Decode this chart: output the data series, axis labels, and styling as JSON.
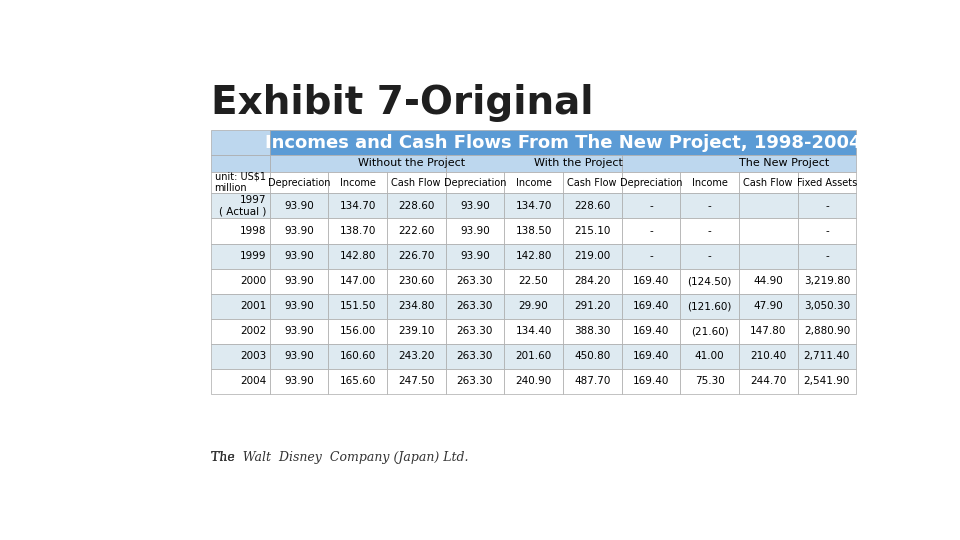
{
  "title": "Exhibit 7-Original",
  "table_header": "Incomes and Cash Flows From The New Project, 1998-2004",
  "section_headers": [
    "Without the Project",
    "With the Project",
    "The New Project"
  ],
  "section_spans": [
    3,
    3,
    4
  ],
  "col_headers": [
    "Depreciation",
    "Income",
    "Cash Flow",
    "Depreciation",
    "Income",
    "Cash Flow",
    "Depreciation",
    "Income",
    "Cash Flow",
    "Fixed Assets"
  ],
  "row_labels": [
    "unit: US$1\nmillion",
    "1997\n( Actual )",
    "1998",
    "1999",
    "2000",
    "2001",
    "2002",
    "2003",
    "2004"
  ],
  "rows": [
    [
      "Depreciation",
      "Income",
      "Cash Flow",
      "Depreciation",
      "Income",
      "Cash Flow",
      "Depreciation",
      "Income",
      "Cash Flow",
      "Fixed Assets"
    ],
    [
      "93.90",
      "134.70",
      "228.60",
      "93.90",
      "134.70",
      "228.60",
      "-",
      "-",
      "",
      "-"
    ],
    [
      "93.90",
      "138.70",
      "222.60",
      "93.90",
      "138.50",
      "215.10",
      "-",
      "-",
      "",
      "-"
    ],
    [
      "93.90",
      "142.80",
      "226.70",
      "93.90",
      "142.80",
      "219.00",
      "-",
      "-",
      "",
      "-"
    ],
    [
      "93.90",
      "147.00",
      "230.60",
      "263.30",
      "22.50",
      "284.20",
      "169.40",
      "(124.50)",
      "44.90",
      "3,219.80"
    ],
    [
      "93.90",
      "151.50",
      "234.80",
      "263.30",
      "29.90",
      "291.20",
      "169.40",
      "(121.60)",
      "47.90",
      "3,050.30"
    ],
    [
      "93.90",
      "156.00",
      "239.10",
      "263.30",
      "134.40",
      "388.30",
      "169.40",
      "(21.60)",
      "147.80",
      "2,880.90"
    ],
    [
      "93.90",
      "160.60",
      "243.20",
      "263.30",
      "201.60",
      "450.80",
      "169.40",
      "41.00",
      "210.40",
      "2,711.40"
    ],
    [
      "93.90",
      "165.60",
      "247.50",
      "263.30",
      "240.90",
      "487.70",
      "169.40",
      "75.30",
      "244.70",
      "2,541.90"
    ]
  ],
  "table_header_bg": "#5B9BD5",
  "table_header_text": "#FFFFFF",
  "section_header_bg": "#BDD7EE",
  "section_header_text": "#000000",
  "col_header_bg": "#FFFFFF",
  "row_bg_even": "#DEEAF1",
  "row_bg_odd": "#FFFFFF",
  "grid_color": "#AAAAAA",
  "footer_text": "The  Walt  Disney  Company (Japan) Ltd.",
  "bg_color": "#FFFFFF",
  "title_color": "#1F1F1F"
}
